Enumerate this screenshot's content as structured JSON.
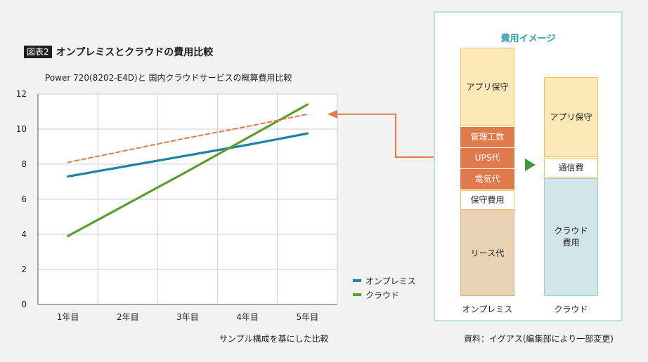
{
  "figure": {
    "badge": "図表2",
    "title": "オンプレミスとクラウドの費用比較"
  },
  "chart_data": {
    "type": "line",
    "title": "Power 720(8202-E4D)と 国内クラウドサービスの概算費用比較",
    "categories": [
      "1年目",
      "2年目",
      "3年目",
      "4年目",
      "5年目"
    ],
    "y_ticks": [
      0,
      2,
      4,
      6,
      8,
      10,
      12
    ],
    "ylim": [
      0,
      12
    ],
    "grid": true,
    "legend_position": "bottom-right",
    "series": [
      {
        "name": "オンプレミス",
        "color": "#1e84a0",
        "style": "solid",
        "values": [
          7.3,
          7.9,
          8.5,
          9.1,
          9.75
        ]
      },
      {
        "name": "クラウド",
        "color": "#5a9e2f",
        "style": "solid",
        "values": [
          3.9,
          5.75,
          7.6,
          9.5,
          11.4
        ]
      },
      {
        "color": "#e07a4c",
        "style": "dashed",
        "values": [
          8.1,
          8.8,
          9.5,
          10.15,
          10.85
        ]
      }
    ]
  },
  "captions": {
    "left": "サンプル構成を基にした比較",
    "right": "資料：イグアス(編集部により一部変更)"
  },
  "cost_image": {
    "title": "費用イメージ",
    "onprem": {
      "label": "オンプレミス",
      "segments": {
        "app_maintenance": "アプリ保守",
        "mgmt_effort": "管理工数",
        "ups": "UPS代",
        "electricity": "電気代",
        "maintenance_fee": "保守費用",
        "lease": "リース代"
      }
    },
    "cloud": {
      "label": "クラウド",
      "segments": {
        "app_maintenance": "アプリ保守",
        "communication": "通信費",
        "cloud_fee": "クラウド\n費用"
      }
    },
    "colors": {
      "app": "#fde9b8",
      "app_border": "#f3c355",
      "orange": "#e07a4c",
      "white": "#ffffff",
      "lease": "#e8d2b3",
      "lease_border": "#d4b48a",
      "cloud": "#d2e6ea",
      "cloud_border": "#9ccfd8",
      "accent": "#2d9fb0",
      "arrow": "#3e9a3a"
    }
  }
}
